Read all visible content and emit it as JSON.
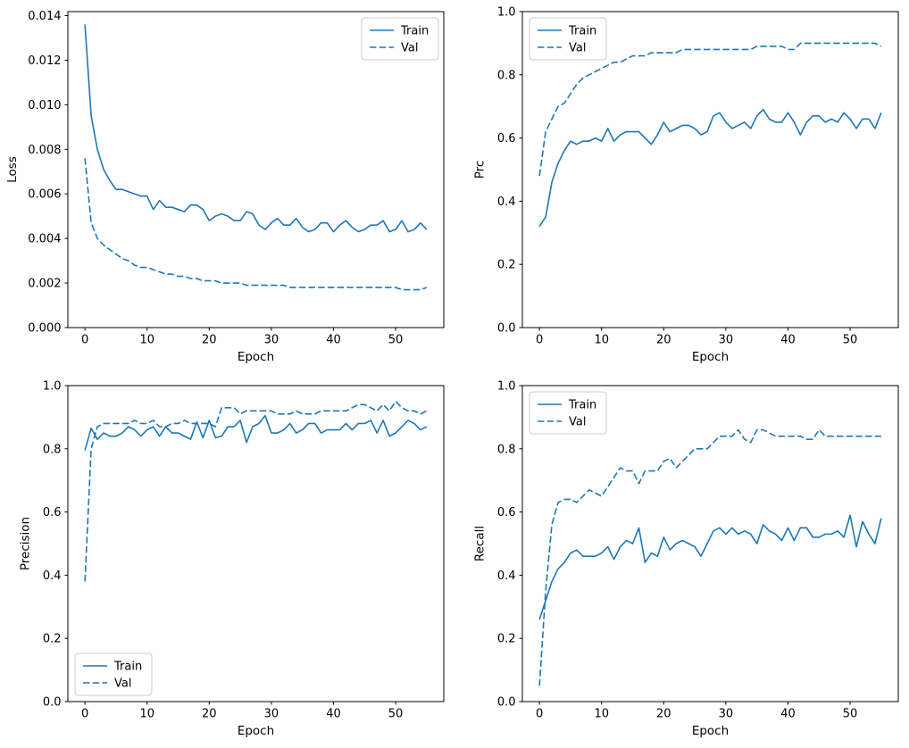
{
  "figure": {
    "background": "#ffffff",
    "line_color": "#1f77b4",
    "axis_color": "#000000",
    "legend_border_color": "#cccccc",
    "legend_labels": [
      "Train",
      "Val"
    ]
  },
  "epochs": [
    0,
    1,
    2,
    3,
    4,
    5,
    6,
    7,
    8,
    9,
    10,
    11,
    12,
    13,
    14,
    15,
    16,
    17,
    18,
    19,
    20,
    21,
    22,
    23,
    24,
    25,
    26,
    27,
    28,
    29,
    30,
    31,
    32,
    33,
    34,
    35,
    36,
    37,
    38,
    39,
    40,
    41,
    42,
    43,
    44,
    45,
    46,
    47,
    48,
    49,
    50,
    51,
    52,
    53,
    54,
    55
  ],
  "chart_data": [
    {
      "type": "line",
      "position": "top-left",
      "xlabel": "Epoch",
      "ylabel": "Loss",
      "xlim": [
        -2.75,
        57.75
      ],
      "ylim": [
        0,
        0.01418
      ],
      "xticks": [
        0,
        10,
        20,
        30,
        40,
        50
      ],
      "xtick_labels": [
        "0",
        "10",
        "20",
        "30",
        "40",
        "50"
      ],
      "yticks": [
        0.0,
        0.002,
        0.004,
        0.006,
        0.008,
        0.01,
        0.012,
        0.014
      ],
      "ytick_labels": [
        "0.000",
        "0.002",
        "0.004",
        "0.006",
        "0.008",
        "0.010",
        "0.012",
        "0.014"
      ],
      "legend_position": "upper-right",
      "grid": false,
      "series": [
        {
          "name": "Train",
          "style": "solid",
          "values": [
            0.0136,
            0.0095,
            0.008,
            0.0071,
            0.0066,
            0.0062,
            0.0062,
            0.0061,
            0.006,
            0.0059,
            0.0059,
            0.0053,
            0.0057,
            0.0054,
            0.0054,
            0.0053,
            0.0052,
            0.0055,
            0.0055,
            0.0053,
            0.0048,
            0.005,
            0.0051,
            0.005,
            0.0048,
            0.0048,
            0.0052,
            0.0051,
            0.0046,
            0.0044,
            0.0047,
            0.0049,
            0.0046,
            0.0046,
            0.0049,
            0.0045,
            0.0043,
            0.0044,
            0.0047,
            0.0047,
            0.0043,
            0.0046,
            0.0048,
            0.0045,
            0.0043,
            0.0044,
            0.0046,
            0.0046,
            0.0048,
            0.0043,
            0.0044,
            0.0048,
            0.0043,
            0.0044,
            0.0047,
            0.0044
          ]
        },
        {
          "name": "Val",
          "style": "dashed",
          "values": [
            0.0076,
            0.0047,
            0.004,
            0.0037,
            0.0035,
            0.0033,
            0.0031,
            0.003,
            0.0028,
            0.0027,
            0.0027,
            0.0026,
            0.0025,
            0.0024,
            0.0024,
            0.0023,
            0.0023,
            0.0022,
            0.0022,
            0.0021,
            0.0021,
            0.0021,
            0.002,
            0.002,
            0.002,
            0.002,
            0.0019,
            0.0019,
            0.0019,
            0.0019,
            0.0019,
            0.0019,
            0.0019,
            0.0018,
            0.0018,
            0.0018,
            0.0018,
            0.0018,
            0.0018,
            0.0018,
            0.0018,
            0.0018,
            0.0018,
            0.0018,
            0.0018,
            0.0018,
            0.0018,
            0.0018,
            0.0018,
            0.0018,
            0.0018,
            0.0017,
            0.0017,
            0.0017,
            0.0017,
            0.0018
          ]
        }
      ]
    },
    {
      "type": "line",
      "position": "top-right",
      "xlabel": "Epoch",
      "ylabel": "Prc",
      "xlim": [
        -2.75,
        57.75
      ],
      "ylim": [
        0,
        1.0
      ],
      "xticks": [
        0,
        10,
        20,
        30,
        40,
        50
      ],
      "xtick_labels": [
        "0",
        "10",
        "20",
        "30",
        "40",
        "50"
      ],
      "yticks": [
        0.0,
        0.2,
        0.4,
        0.6,
        0.8,
        1.0
      ],
      "ytick_labels": [
        "0.0",
        "0.2",
        "0.4",
        "0.6",
        "0.8",
        "1.0"
      ],
      "legend_position": "upper-left",
      "grid": false,
      "series": [
        {
          "name": "Train",
          "style": "solid",
          "values": [
            0.32,
            0.35,
            0.46,
            0.52,
            0.56,
            0.59,
            0.58,
            0.59,
            0.59,
            0.6,
            0.59,
            0.63,
            0.59,
            0.61,
            0.62,
            0.62,
            0.62,
            0.6,
            0.58,
            0.61,
            0.65,
            0.62,
            0.63,
            0.64,
            0.64,
            0.63,
            0.61,
            0.62,
            0.67,
            0.68,
            0.65,
            0.63,
            0.64,
            0.65,
            0.63,
            0.67,
            0.69,
            0.66,
            0.65,
            0.65,
            0.68,
            0.65,
            0.61,
            0.65,
            0.67,
            0.67,
            0.65,
            0.66,
            0.65,
            0.68,
            0.66,
            0.63,
            0.66,
            0.66,
            0.63,
            0.68
          ]
        },
        {
          "name": "Val",
          "style": "dashed",
          "values": [
            0.48,
            0.62,
            0.66,
            0.7,
            0.71,
            0.74,
            0.77,
            0.79,
            0.8,
            0.81,
            0.82,
            0.83,
            0.84,
            0.84,
            0.85,
            0.86,
            0.86,
            0.86,
            0.87,
            0.87,
            0.87,
            0.87,
            0.87,
            0.88,
            0.88,
            0.88,
            0.88,
            0.88,
            0.88,
            0.88,
            0.88,
            0.88,
            0.88,
            0.88,
            0.88,
            0.89,
            0.89,
            0.89,
            0.89,
            0.89,
            0.88,
            0.88,
            0.9,
            0.9,
            0.9,
            0.9,
            0.9,
            0.9,
            0.9,
            0.9,
            0.9,
            0.9,
            0.9,
            0.9,
            0.9,
            0.89
          ]
        }
      ]
    },
    {
      "type": "line",
      "position": "bottom-left",
      "xlabel": "Epoch",
      "ylabel": "Precision",
      "xlim": [
        -2.75,
        57.75
      ],
      "ylim": [
        0,
        1.0
      ],
      "xticks": [
        0,
        10,
        20,
        30,
        40,
        50
      ],
      "xtick_labels": [
        "0",
        "10",
        "20",
        "30",
        "40",
        "50"
      ],
      "yticks": [
        0.0,
        0.2,
        0.4,
        0.6,
        0.8,
        1.0
      ],
      "ytick_labels": [
        "0.0",
        "0.2",
        "0.4",
        "0.6",
        "0.8",
        "1.0"
      ],
      "legend_position": "lower-left",
      "grid": false,
      "series": [
        {
          "name": "Train",
          "style": "solid",
          "values": [
            0.795,
            0.865,
            0.83,
            0.85,
            0.84,
            0.84,
            0.85,
            0.87,
            0.86,
            0.84,
            0.86,
            0.87,
            0.84,
            0.87,
            0.85,
            0.85,
            0.84,
            0.83,
            0.885,
            0.835,
            0.89,
            0.835,
            0.84,
            0.87,
            0.87,
            0.89,
            0.82,
            0.87,
            0.88,
            0.905,
            0.85,
            0.85,
            0.86,
            0.88,
            0.85,
            0.86,
            0.88,
            0.88,
            0.85,
            0.86,
            0.86,
            0.86,
            0.88,
            0.86,
            0.88,
            0.88,
            0.89,
            0.85,
            0.89,
            0.84,
            0.85,
            0.87,
            0.89,
            0.88,
            0.86,
            0.87
          ]
        },
        {
          "name": "Val",
          "style": "dashed",
          "values": [
            0.38,
            0.8,
            0.87,
            0.88,
            0.88,
            0.88,
            0.88,
            0.88,
            0.89,
            0.88,
            0.88,
            0.89,
            0.87,
            0.87,
            0.88,
            0.88,
            0.89,
            0.88,
            0.88,
            0.88,
            0.88,
            0.87,
            0.93,
            0.93,
            0.93,
            0.91,
            0.92,
            0.92,
            0.92,
            0.92,
            0.92,
            0.91,
            0.91,
            0.91,
            0.92,
            0.91,
            0.91,
            0.91,
            0.92,
            0.92,
            0.92,
            0.92,
            0.92,
            0.93,
            0.94,
            0.94,
            0.93,
            0.92,
            0.94,
            0.92,
            0.95,
            0.93,
            0.92,
            0.92,
            0.91,
            0.92
          ]
        }
      ]
    },
    {
      "type": "line",
      "position": "bottom-right",
      "xlabel": "Epoch",
      "ylabel": "Recall",
      "xlim": [
        -2.75,
        57.75
      ],
      "ylim": [
        0,
        1.0
      ],
      "xticks": [
        0,
        10,
        20,
        30,
        40,
        50
      ],
      "xtick_labels": [
        "0",
        "10",
        "20",
        "30",
        "40",
        "50"
      ],
      "yticks": [
        0.0,
        0.2,
        0.4,
        0.6,
        0.8,
        1.0
      ],
      "ytick_labels": [
        "0.0",
        "0.2",
        "0.4",
        "0.6",
        "0.8",
        "1.0"
      ],
      "legend_position": "upper-left",
      "grid": false,
      "series": [
        {
          "name": "Train",
          "style": "solid",
          "values": [
            0.26,
            0.32,
            0.38,
            0.42,
            0.44,
            0.47,
            0.48,
            0.46,
            0.46,
            0.46,
            0.47,
            0.49,
            0.45,
            0.49,
            0.51,
            0.5,
            0.55,
            0.44,
            0.47,
            0.46,
            0.52,
            0.48,
            0.5,
            0.51,
            0.5,
            0.49,
            0.46,
            0.5,
            0.54,
            0.55,
            0.53,
            0.55,
            0.53,
            0.54,
            0.53,
            0.5,
            0.56,
            0.54,
            0.53,
            0.51,
            0.55,
            0.51,
            0.55,
            0.55,
            0.52,
            0.52,
            0.53,
            0.53,
            0.54,
            0.52,
            0.59,
            0.49,
            0.57,
            0.53,
            0.5,
            0.58
          ]
        },
        {
          "name": "Val",
          "style": "dashed",
          "values": [
            0.05,
            0.35,
            0.56,
            0.63,
            0.64,
            0.64,
            0.63,
            0.65,
            0.67,
            0.66,
            0.65,
            0.68,
            0.71,
            0.74,
            0.73,
            0.73,
            0.69,
            0.73,
            0.73,
            0.73,
            0.76,
            0.77,
            0.74,
            0.76,
            0.78,
            0.8,
            0.8,
            0.8,
            0.82,
            0.84,
            0.84,
            0.84,
            0.86,
            0.83,
            0.82,
            0.86,
            0.86,
            0.85,
            0.84,
            0.84,
            0.84,
            0.84,
            0.84,
            0.83,
            0.83,
            0.86,
            0.84,
            0.84,
            0.84,
            0.84,
            0.84,
            0.84,
            0.84,
            0.84,
            0.84,
            0.84
          ]
        }
      ]
    }
  ]
}
